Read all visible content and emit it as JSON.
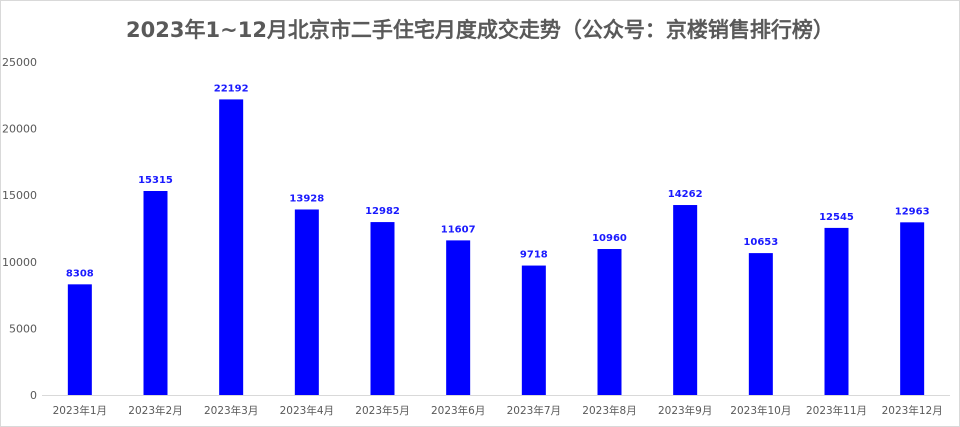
{
  "title": "2023年1~12月北京市二手住宅月度成交走势（公众号：京楼销售排行榜）",
  "colors": {
    "bar": "#0000ff",
    "label": "#1a1aff",
    "axis": "#d9d9d9",
    "text": "#595959"
  },
  "chart_data": {
    "type": "bar",
    "title": "2023年1~12月北京市二手住宅月度成交走势（公众号：京楼销售排行榜）",
    "categories": [
      "2023年1月",
      "2023年2月",
      "2023年3月",
      "2023年4月",
      "2023年5月",
      "2023年6月",
      "2023年7月",
      "2023年8月",
      "2023年9月",
      "2023年10月",
      "2023年11月",
      "2023年12月"
    ],
    "values": [
      8308,
      15315,
      22192,
      13928,
      12982,
      11607,
      9718,
      10960,
      14262,
      10653,
      12545,
      12963
    ],
    "xlabel": "",
    "ylabel": "",
    "ylim": [
      0,
      25000
    ],
    "yticks": [
      0,
      5000,
      10000,
      15000,
      20000,
      25000
    ],
    "grid": false,
    "legend": "none",
    "data_labels": true
  }
}
